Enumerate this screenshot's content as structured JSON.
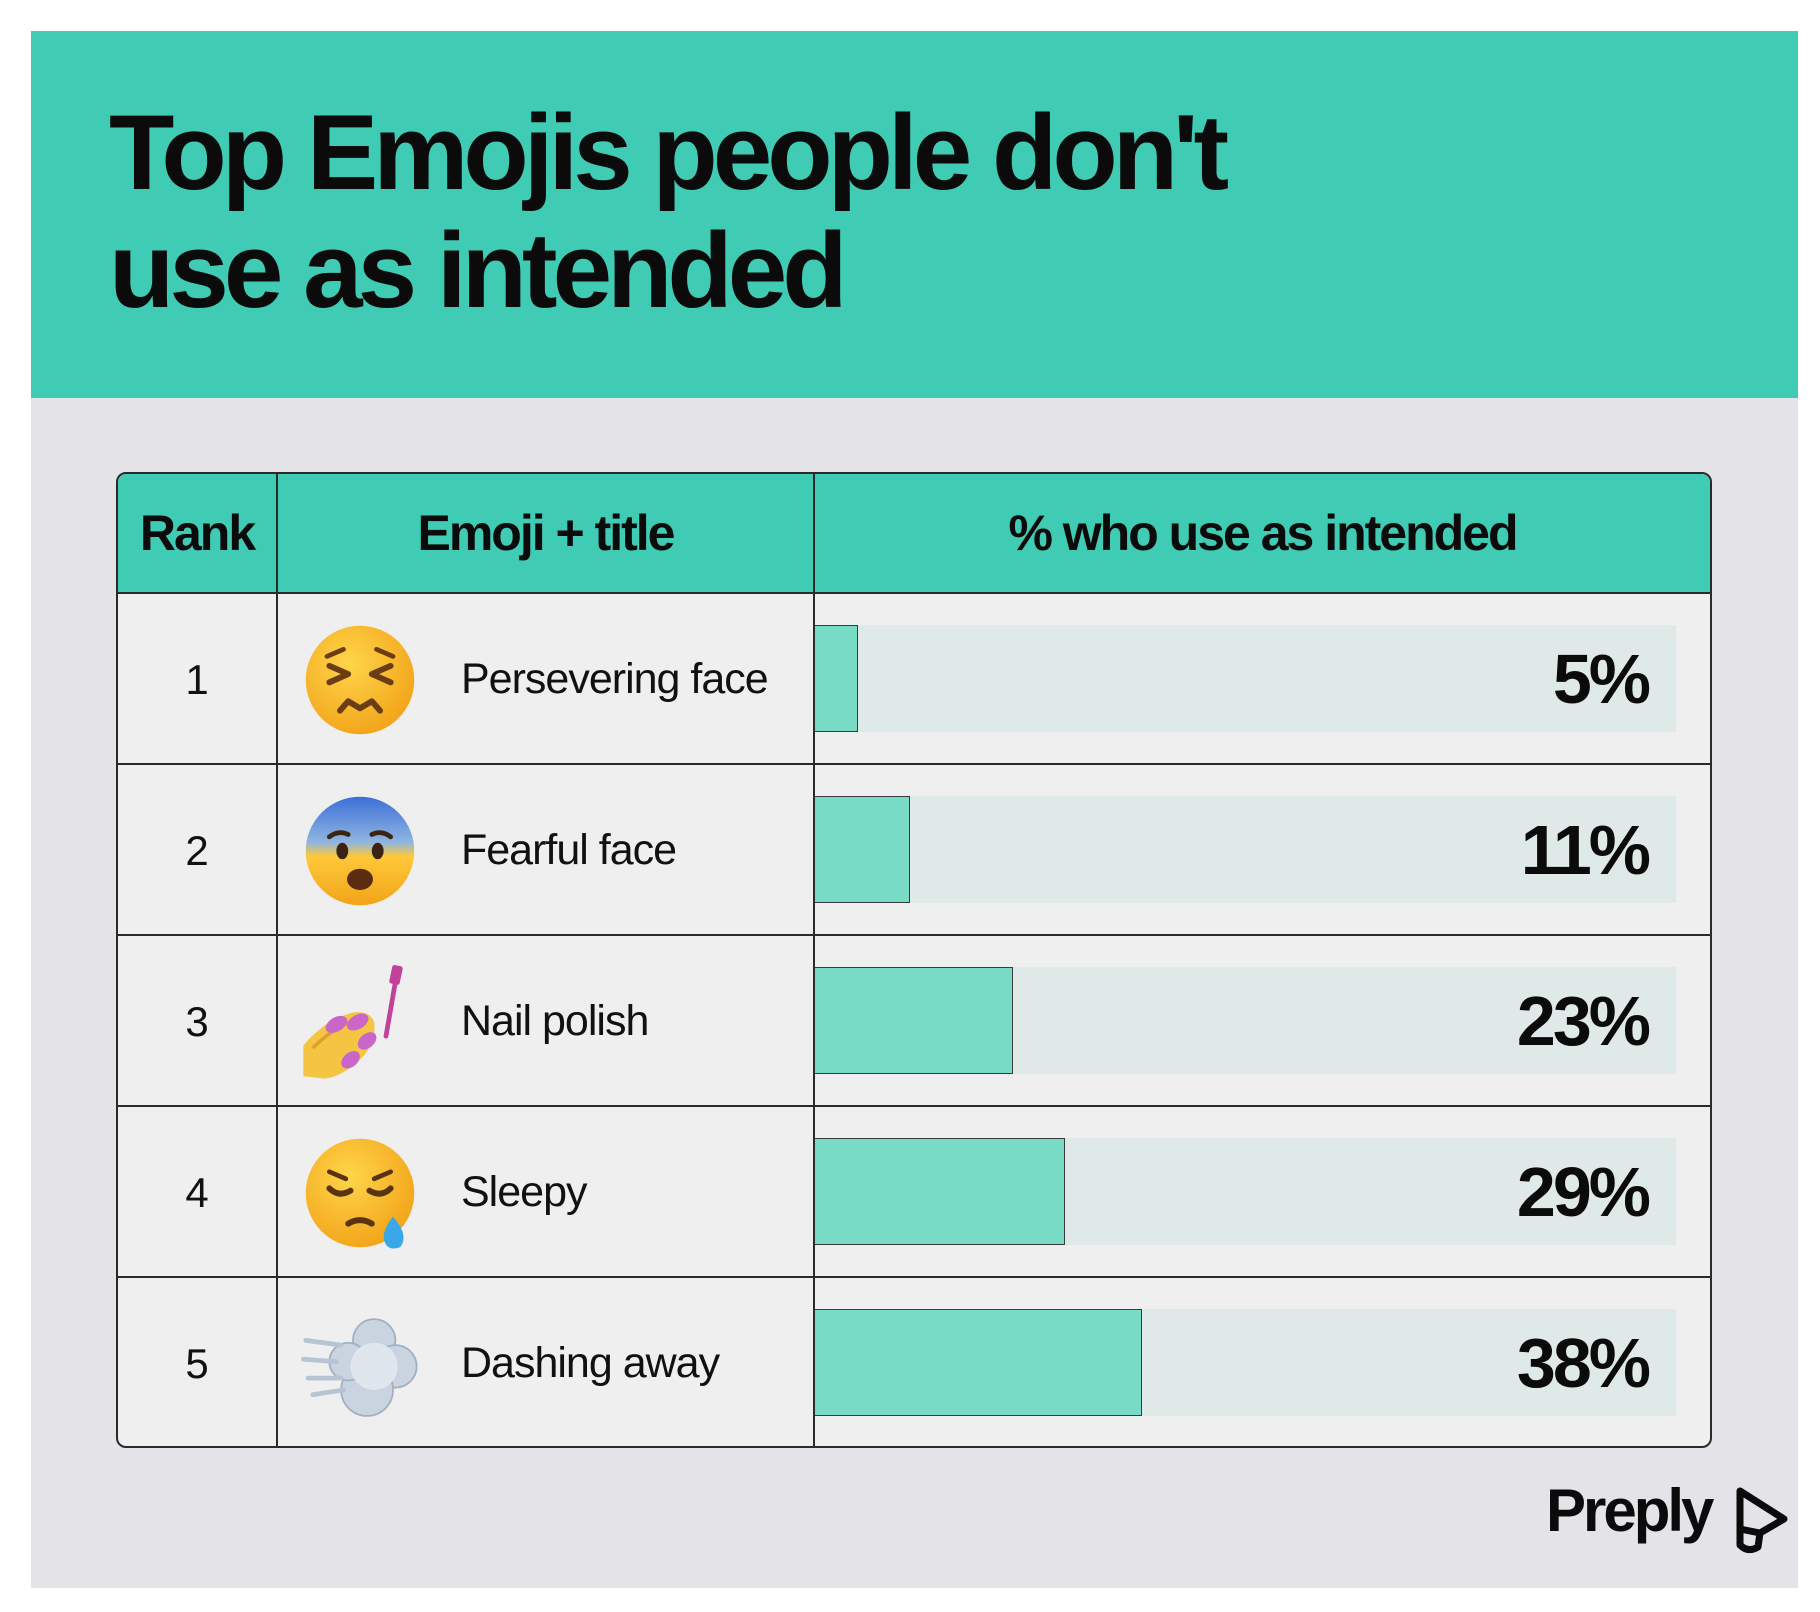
{
  "title": "Top Emojis people don't use as intended",
  "brand": {
    "name": "Preply"
  },
  "colors": {
    "accent": "#40cbb4",
    "bar_fill": "#78dbc6",
    "bar_track": "#dfe9e7",
    "background": "#e3e3e8"
  },
  "chart_data": {
    "type": "table",
    "columns": [
      "Rank",
      "Emoji + title",
      "% who use as intended"
    ],
    "rows": [
      {
        "rank": "1",
        "emoji": "persevering-face",
        "title": "Persevering face",
        "value": 5,
        "label": "5%"
      },
      {
        "rank": "2",
        "emoji": "fearful-face",
        "title": "Fearful face",
        "value": 11,
        "label": "11%"
      },
      {
        "rank": "3",
        "emoji": "nail-polish",
        "title": "Nail polish",
        "value": 23,
        "label": "23%"
      },
      {
        "rank": "4",
        "emoji": "sleepy-face",
        "title": "Sleepy",
        "value": 29,
        "label": "29%"
      },
      {
        "rank": "5",
        "emoji": "dashing-away",
        "title": "Dashing away",
        "value": 38,
        "label": "38%"
      }
    ],
    "value_max": 100
  }
}
